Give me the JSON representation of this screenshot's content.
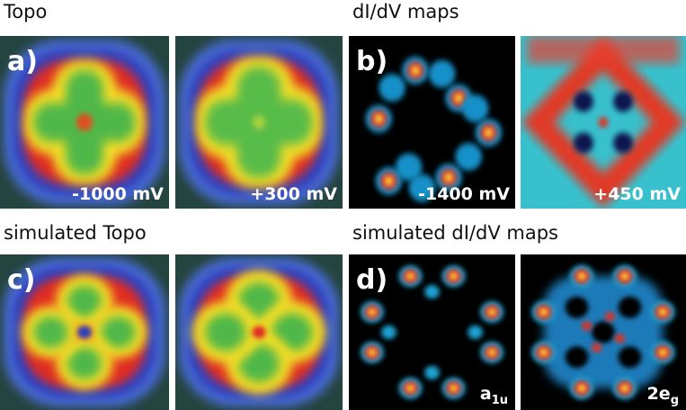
{
  "header_top_left": "Topo",
  "header_top_right": "dI/dV maps",
  "header_bottom_left": "simulated Topo",
  "header_bottom_right": "simulated dI/dV maps",
  "panels": [
    {
      "label": "a)",
      "caption": "-1000 mV"
    },
    {
      "caption": "+300 mV"
    },
    {
      "label": "b)",
      "caption": "-1400 mV"
    },
    {
      "caption": "+450 mV"
    },
    {
      "label": "c)"
    },
    {},
    {
      "label": "d)",
      "caption": {
        "main": "a",
        "sub": "1u"
      }
    },
    {
      "caption": {
        "main": "2e",
        "sub": "g"
      }
    }
  ]
}
